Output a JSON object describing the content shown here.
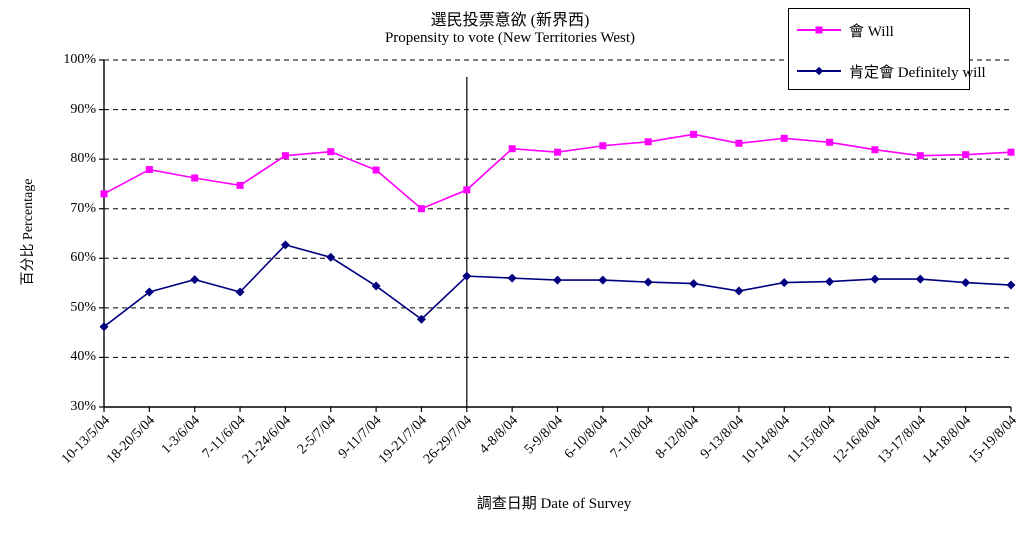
{
  "title": {
    "zh": "選民投票意欲 (新界西)",
    "en": "Propensity to vote (New Territories West)"
  },
  "axes": {
    "y_title": "百分比 Percentage",
    "x_title": "調查日期 Date of Survey",
    "y_tick_labels": [
      "100%",
      "90%",
      "80%",
      "70%",
      "60%",
      "50%",
      "40%",
      "30%"
    ],
    "y_tick_values": [
      100,
      90,
      80,
      70,
      60,
      50,
      40,
      30
    ]
  },
  "legend": [
    {
      "label": "會 Will",
      "color": "#FF00FF",
      "marker": "square"
    },
    {
      "label": "肯定會 Definitely will",
      "color": "#000080",
      "marker": "diamond"
    }
  ],
  "chart_data": {
    "type": "line",
    "title": "選民投票意欲 (新界西) / Propensity to vote (New Territories West)",
    "xlabel": "調查日期 Date of Survey",
    "ylabel": "百分比 Percentage",
    "ylim": [
      30,
      100
    ],
    "grid": "horizontal-dashed",
    "legend_position": "top-right",
    "categories": [
      "10-13/5/04",
      "18-20/5/04",
      "1-3/6/04",
      "7-11/6/04",
      "21-24/6/04",
      "2-5/7/04",
      "9-11/7/04",
      "19-21/7/04",
      "26-29/7/04",
      "4-8/8/04",
      "5-9/8/04",
      "6-10/8/04",
      "7-11/8/04",
      "8-12/8/04",
      "9-13/8/04",
      "10-14/8/04",
      "11-15/8/04",
      "12-16/8/04",
      "13-17/8/04",
      "14-18/8/04",
      "15-19/8/04"
    ],
    "series": [
      {
        "name": "會 Will",
        "color": "#FF00FF",
        "marker": "square",
        "values": [
          73.0,
          77.9,
          76.2,
          74.7,
          80.7,
          81.5,
          77.8,
          70.0,
          73.8,
          82.1,
          81.4,
          82.7,
          83.5,
          85.0,
          83.2,
          84.2,
          83.4,
          81.9,
          80.7,
          80.9,
          81.4
        ]
      },
      {
        "name": "肯定會 Definitely will",
        "color": "#000080",
        "marker": "diamond",
        "values": [
          46.2,
          53.2,
          55.7,
          53.2,
          62.7,
          60.2,
          54.4,
          47.7,
          56.4,
          56.0,
          55.6,
          55.6,
          55.2,
          54.9,
          53.4,
          55.1,
          55.3,
          55.8,
          55.8,
          55.1,
          54.6
        ]
      }
    ],
    "annotations": [
      {
        "type": "vertical-line",
        "at_category": "26-29/7/04",
        "at_category_index": 8
      }
    ]
  }
}
